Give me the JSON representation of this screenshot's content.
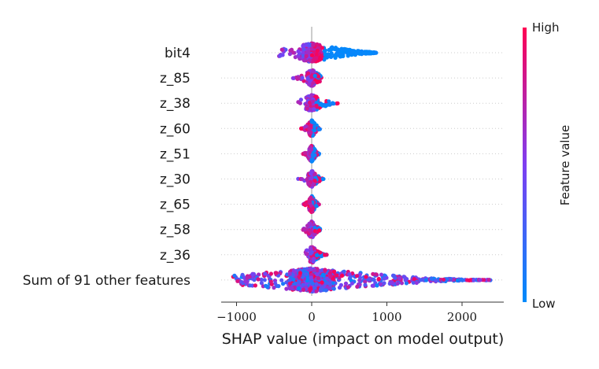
{
  "chart_data": {
    "type": "scatter",
    "subtype": "shap-beeswarm-summary",
    "xlabel": "SHAP value (impact on model output)",
    "xlim": [
      -1150,
      2560
    ],
    "xticks": [
      -1000,
      0,
      1000,
      2000
    ],
    "xtick_labels": [
      "−1000",
      "0",
      "1000",
      "2000"
    ],
    "features": [
      {
        "name": "bit4",
        "min": -450,
        "max": 980,
        "lo": -180,
        "hi": 850,
        "core": [
          -120,
          120
        ]
      },
      {
        "name": "z_85",
        "min": -250,
        "max": 150,
        "lo": -40,
        "hi": 120,
        "core": [
          -60,
          60
        ]
      },
      {
        "name": "z_38",
        "min": -200,
        "max": 370,
        "lo": -80,
        "hi": 250,
        "core": [
          -70,
          80
        ]
      },
      {
        "name": "z_60",
        "min": -140,
        "max": 110,
        "lo": -40,
        "hi": 80,
        "core": [
          -40,
          40
        ]
      },
      {
        "name": "z_51",
        "min": -120,
        "max": 100,
        "lo": -40,
        "hi": 70,
        "core": [
          -40,
          40
        ]
      },
      {
        "name": "z_30",
        "min": -180,
        "max": 170,
        "lo": -50,
        "hi": 120,
        "core": [
          -50,
          50
        ]
      },
      {
        "name": "z_65",
        "min": -120,
        "max": 110,
        "lo": -40,
        "hi": 80,
        "core": [
          -30,
          30
        ]
      },
      {
        "name": "z_58",
        "min": -130,
        "max": 150,
        "lo": -40,
        "hi": 110,
        "core": [
          -40,
          40
        ]
      },
      {
        "name": "z_36",
        "min": -90,
        "max": 200,
        "lo": -20,
        "hi": 150,
        "core": [
          -20,
          40
        ]
      },
      {
        "name": "Sum of 91 other features",
        "min": -1050,
        "max": 2400,
        "lo": -1000,
        "hi": 2400,
        "core": [
          -300,
          300
        ]
      }
    ],
    "colorbar": {
      "label": "Feature value",
      "high_label": "High",
      "low_label": "Low",
      "low_color": "#008bfb",
      "high_color": "#ff0052"
    }
  }
}
